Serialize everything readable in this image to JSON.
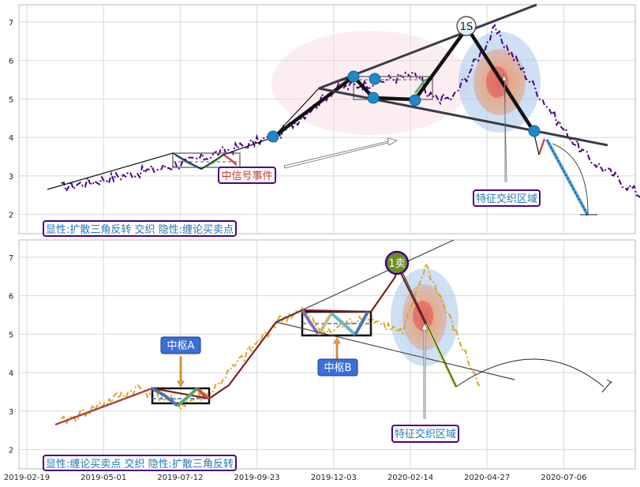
{
  "chart_data": [
    {
      "type": "line",
      "panel": "top",
      "x_ticks": [
        "2019-02-19",
        "2019-05-01",
        "2019-07-12",
        "2019-09-23",
        "2019-12-03",
        "2020-02-14",
        "2020-04-27",
        "2020-07-06"
      ],
      "yticks": [
        2,
        3,
        4,
        5,
        6,
        7
      ],
      "ylim": [
        1.5,
        7.45
      ],
      "grid": true,
      "series_color": "#4b0082",
      "annotations": {
        "top_point": "1S",
        "event": "中信号事件",
        "zone": "特征交织区域",
        "legend": "显性:扩散三角反转 交织 隐性:缠论买卖点"
      },
      "points": [
        [
          1.45,
          2.7
        ],
        [
          3.0,
          3.3
        ],
        [
          4.28,
          4.05
        ],
        [
          5.0,
          5.25
        ],
        [
          5.97,
          5.6
        ],
        [
          6.15,
          5.55
        ],
        [
          6.2,
          5.05
        ],
        [
          6.55,
          5.0
        ],
        [
          7.1,
          6.8
        ],
        [
          8.0,
          4.2
        ],
        [
          8.3,
          3.5
        ],
        [
          9.35,
          2.0
        ]
      ]
    },
    {
      "type": "line",
      "panel": "bottom",
      "x_ticks": [
        "2019-02-19",
        "2019-05-01",
        "2019-07-12",
        "2019-09-23",
        "2019-12-03",
        "2020-02-14",
        "2020-04-27",
        "2020-07-06"
      ],
      "yticks": [
        2,
        3,
        4,
        5,
        6,
        7
      ],
      "ylim": [
        1.5,
        7.45
      ],
      "grid": true,
      "series_color": "#daa520",
      "annotations": {
        "top_point": "1卖",
        "zone_a": "中枢A",
        "zone_b": "中枢B",
        "zone": "特征交织区域",
        "legend": "显性:缠论买卖点 交织 隐性:扩散三角反转"
      },
      "points": [
        [
          1.45,
          2.7
        ],
        [
          2.45,
          3.6
        ],
        [
          3.0,
          3.15
        ],
        [
          3.4,
          3.5
        ],
        [
          4.3,
          5.4
        ],
        [
          4.6,
          5.6
        ],
        [
          4.9,
          5.0
        ],
        [
          5.4,
          5.5
        ],
        [
          5.9,
          5.0
        ],
        [
          6.2,
          6.8
        ],
        [
          6.9,
          3.65
        ]
      ]
    }
  ]
}
